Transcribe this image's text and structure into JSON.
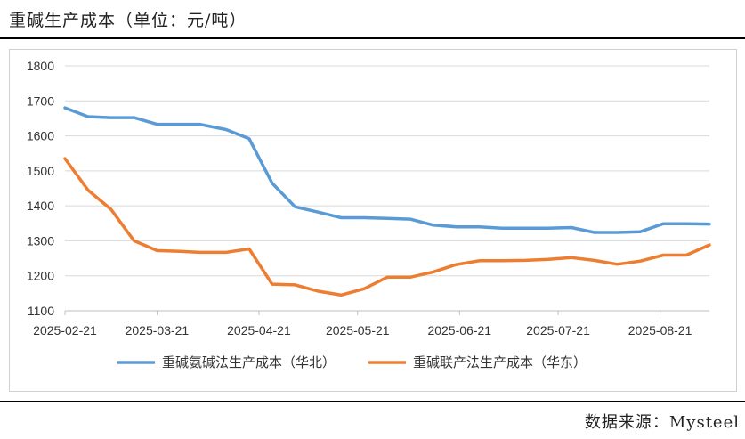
{
  "header": {
    "title": "重碱生产成本（单位：元/吨）"
  },
  "footer": {
    "source": "数据来源：Mysteel"
  },
  "chart_data": {
    "type": "line",
    "title": "重碱生产成本（单位：元/吨）",
    "xlabel": "",
    "ylabel": "",
    "ylim": [
      1100,
      1800
    ],
    "yticks": [
      1100,
      1200,
      1300,
      1400,
      1500,
      1600,
      1700,
      1800
    ],
    "xtick_labels": [
      "2025-02-21",
      "2025-03-21",
      "2025-04-21",
      "2025-05-21",
      "2025-06-21",
      "2025-07-21",
      "2025-08-21"
    ],
    "xtick_dates": [
      "2025-02-21",
      "2025-03-21",
      "2025-04-21",
      "2025-05-21",
      "2025-06-21",
      "2025-07-21",
      "2025-08-21"
    ],
    "grid": "horizontal",
    "legend": "bottom",
    "series": [
      {
        "name": "重碱氨碱法生产成本（华北）",
        "color": "#5B9BD5",
        "x": [
          "2025-02-21",
          "2025-02-28",
          "2025-03-07",
          "2025-03-14",
          "2025-03-21",
          "2025-03-28",
          "2025-04-03",
          "2025-04-11",
          "2025-04-18",
          "2025-04-25",
          "2025-05-02",
          "2025-05-09",
          "2025-05-16",
          "2025-05-23",
          "2025-05-30",
          "2025-06-06",
          "2025-06-13",
          "2025-06-20",
          "2025-06-27",
          "2025-07-04",
          "2025-07-11",
          "2025-07-18",
          "2025-07-25",
          "2025-08-01",
          "2025-08-08",
          "2025-08-15",
          "2025-08-22",
          "2025-08-29",
          "2025-09-05"
        ],
        "values": [
          1680,
          1655,
          1652,
          1652,
          1633,
          1633,
          1633,
          1618,
          1592,
          1465,
          1397,
          1382,
          1366,
          1366,
          1364,
          1362,
          1345,
          1340,
          1340,
          1336,
          1336,
          1336,
          1338,
          1324,
          1324,
          1326,
          1349,
          1349,
          1348
        ]
      },
      {
        "name": "重碱联产法生产成本（华东）",
        "color": "#ED7D31",
        "x": [
          "2025-02-21",
          "2025-02-28",
          "2025-03-07",
          "2025-03-14",
          "2025-03-21",
          "2025-03-28",
          "2025-04-03",
          "2025-04-11",
          "2025-04-18",
          "2025-04-25",
          "2025-05-02",
          "2025-05-09",
          "2025-05-16",
          "2025-05-23",
          "2025-05-30",
          "2025-06-06",
          "2025-06-13",
          "2025-06-20",
          "2025-06-27",
          "2025-07-04",
          "2025-07-11",
          "2025-07-18",
          "2025-07-25",
          "2025-08-01",
          "2025-08-08",
          "2025-08-15",
          "2025-08-22",
          "2025-08-29",
          "2025-09-05"
        ],
        "values": [
          1535,
          1445,
          1390,
          1300,
          1272,
          1270,
          1267,
          1267,
          1277,
          1176,
          1174,
          1156,
          1145,
          1163,
          1196,
          1196,
          1211,
          1232,
          1243,
          1243,
          1244,
          1247,
          1252,
          1244,
          1233,
          1242,
          1259,
          1259,
          1288
        ]
      }
    ]
  }
}
